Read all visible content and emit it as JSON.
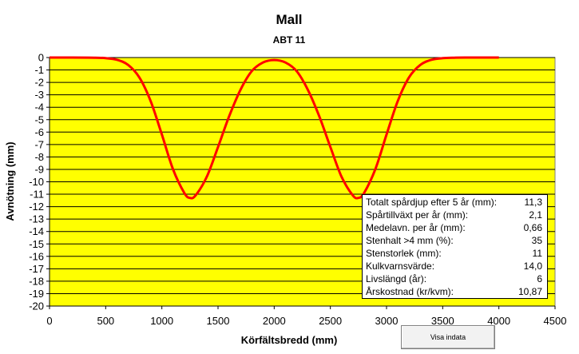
{
  "chart_data": {
    "type": "line",
    "title": "Mall",
    "subtitle": "ABT 11",
    "xlabel": "Körfältsbredd (mm)",
    "ylabel": "Avnötning (mm)",
    "xlim": [
      0,
      4500
    ],
    "ylim": [
      -20,
      0
    ],
    "x_ticks": [
      "0",
      "500",
      "1000",
      "1500",
      "2000",
      "2500",
      "3000",
      "3500",
      "4000",
      "4500"
    ],
    "y_ticks": [
      "0",
      "-1",
      "-2",
      "-3",
      "-4",
      "-5",
      "-6",
      "-7",
      "-8",
      "-9",
      "-10",
      "-11",
      "-12",
      "-13",
      "-14",
      "-15",
      "-16",
      "-17",
      "-18",
      "-19",
      "-20"
    ],
    "plot_background": "#FFFF00",
    "gridlines": true,
    "series": [
      {
        "color": "#FF0000",
        "x": [
          0,
          200,
          400,
          500,
          600,
          700,
          800,
          900,
          1000,
          1100,
          1200,
          1250,
          1300,
          1400,
          1500,
          1600,
          1700,
          1800,
          1900,
          2000,
          2100,
          2200,
          2300,
          2400,
          2500,
          2600,
          2700,
          2750,
          2800,
          2900,
          3000,
          3100,
          3200,
          3300,
          3400,
          3500,
          3600,
          3700,
          3800,
          3900,
          4000
        ],
        "y": [
          0,
          0,
          -0.01,
          -0.05,
          -0.18,
          -0.6,
          -1.6,
          -3.5,
          -6.2,
          -9.0,
          -10.9,
          -11.3,
          -11.1,
          -9.6,
          -7.2,
          -4.7,
          -2.6,
          -1.1,
          -0.4,
          -0.2,
          -0.4,
          -1.1,
          -2.6,
          -4.7,
          -7.2,
          -9.6,
          -11.1,
          -11.3,
          -10.9,
          -9.0,
          -6.2,
          -3.5,
          -1.6,
          -0.6,
          -0.18,
          -0.05,
          -0.01,
          0,
          0,
          0,
          0
        ]
      }
    ]
  },
  "info_table": [
    {
      "label": "Totalt spårdjup efter 5 år (mm):",
      "value": "11,3"
    },
    {
      "label": "Spårtillväxt per år (mm):",
      "value": "2,1"
    },
    {
      "label": "Medelavn. per år (mm):",
      "value": "0,66"
    },
    {
      "label": "Stenhalt >4 mm (%):",
      "value": "35"
    },
    {
      "label": "Stenstorlek (mm):",
      "value": "11"
    },
    {
      "label": "Kulkvarnsvärde:",
      "value": "14,0"
    },
    {
      "label": "Livslängd (år):",
      "value": "6"
    },
    {
      "label": "Årskostnad (kr/kvm):",
      "value": "10,87"
    }
  ],
  "button": {
    "label": "Visa indata"
  }
}
